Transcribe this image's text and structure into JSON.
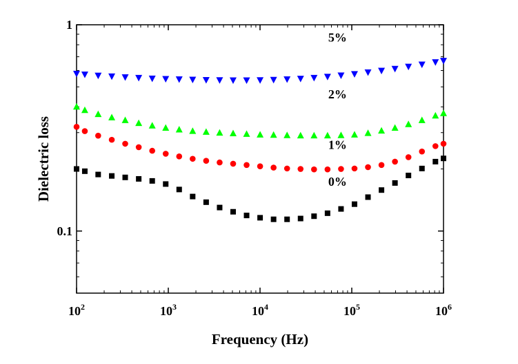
{
  "chart_data": {
    "type": "scatter",
    "xlabel": "Frequency (Hz)",
    "ylabel": "Dielectric loss",
    "x_scale": "log",
    "y_scale": "log",
    "xlim": [
      100,
      1000000
    ],
    "ylim": [
      0.05,
      1
    ],
    "x_ticks": [
      {
        "base": "10",
        "exp": "2"
      },
      {
        "base": "10",
        "exp": "3"
      },
      {
        "base": "10",
        "exp": "4"
      },
      {
        "base": "10",
        "exp": "5"
      },
      {
        "base": "10",
        "exp": "6"
      }
    ],
    "y_ticks": [
      {
        "value": 0.1,
        "label": "0.1"
      },
      {
        "value": 1,
        "label": "1"
      }
    ],
    "grid": false,
    "series": [
      {
        "name": "0%",
        "marker": "square",
        "color": "#000000",
        "x": [
          100,
          123,
          172,
          242,
          339,
          476,
          668,
          937,
          1314,
          1843,
          2586,
          3628,
          5089,
          7139,
          10015,
          14051,
          19712,
          27653,
          38794,
          54424,
          76352,
          107113,
          150269,
          210811,
          295745,
          414898,
          582059,
          816571,
          1000000
        ],
        "y": [
          0.2,
          0.195,
          0.188,
          0.185,
          0.182,
          0.179,
          0.175,
          0.169,
          0.159,
          0.147,
          0.138,
          0.13,
          0.124,
          0.119,
          0.116,
          0.114,
          0.114,
          0.115,
          0.118,
          0.122,
          0.128,
          0.135,
          0.146,
          0.158,
          0.171,
          0.186,
          0.201,
          0.217,
          0.225
        ]
      },
      {
        "name": "1%",
        "marker": "circle",
        "color": "#ff0000",
        "x": [
          100,
          123,
          172,
          242,
          339,
          476,
          668,
          937,
          1314,
          1843,
          2586,
          3628,
          5089,
          7139,
          10015,
          14051,
          19712,
          27653,
          38794,
          54424,
          76352,
          107113,
          150269,
          210811,
          295745,
          414898,
          582059,
          816571,
          1000000
        ],
        "y": [
          0.32,
          0.305,
          0.29,
          0.277,
          0.265,
          0.255,
          0.245,
          0.237,
          0.23,
          0.224,
          0.219,
          0.215,
          0.212,
          0.209,
          0.206,
          0.203,
          0.201,
          0.2,
          0.199,
          0.199,
          0.2,
          0.201,
          0.204,
          0.209,
          0.217,
          0.228,
          0.243,
          0.258,
          0.265
        ]
      },
      {
        "name": "2%",
        "marker": "triangle-up",
        "color": "#00ff00",
        "x": [
          100,
          123,
          172,
          242,
          339,
          476,
          668,
          937,
          1314,
          1843,
          2586,
          3628,
          5089,
          7139,
          10015,
          14051,
          19712,
          27653,
          38794,
          54424,
          76352,
          107113,
          150269,
          210811,
          295745,
          414898,
          582059,
          816571,
          1000000
        ],
        "y": [
          0.4,
          0.385,
          0.368,
          0.355,
          0.344,
          0.333,
          0.324,
          0.316,
          0.31,
          0.305,
          0.302,
          0.299,
          0.297,
          0.295,
          0.293,
          0.292,
          0.291,
          0.29,
          0.29,
          0.29,
          0.291,
          0.293,
          0.298,
          0.306,
          0.316,
          0.329,
          0.344,
          0.362,
          0.372
        ]
      },
      {
        "name": "5%",
        "marker": "triangle-down",
        "color": "#0000ff",
        "x": [
          100,
          123,
          172,
          242,
          339,
          476,
          668,
          937,
          1314,
          1843,
          2586,
          3628,
          5089,
          7139,
          10015,
          14051,
          19712,
          27653,
          38794,
          54424,
          76352,
          107113,
          150269,
          210811,
          295745,
          414898,
          582059,
          816571,
          1000000
        ],
        "y": [
          0.58,
          0.575,
          0.568,
          0.563,
          0.558,
          0.554,
          0.55,
          0.547,
          0.545,
          0.543,
          0.541,
          0.54,
          0.539,
          0.539,
          0.54,
          0.542,
          0.545,
          0.549,
          0.554,
          0.561,
          0.569,
          0.578,
          0.589,
          0.6,
          0.613,
          0.628,
          0.643,
          0.66,
          0.67
        ]
      }
    ],
    "annotations": [
      {
        "text": "5%",
        "x": 70000,
        "y": 0.83
      },
      {
        "text": "2%",
        "x": 70000,
        "y": 0.44
      },
      {
        "text": "1%",
        "x": 70000,
        "y": 0.25
      },
      {
        "text": "0%",
        "x": 70000,
        "y": 0.166
      }
    ]
  }
}
